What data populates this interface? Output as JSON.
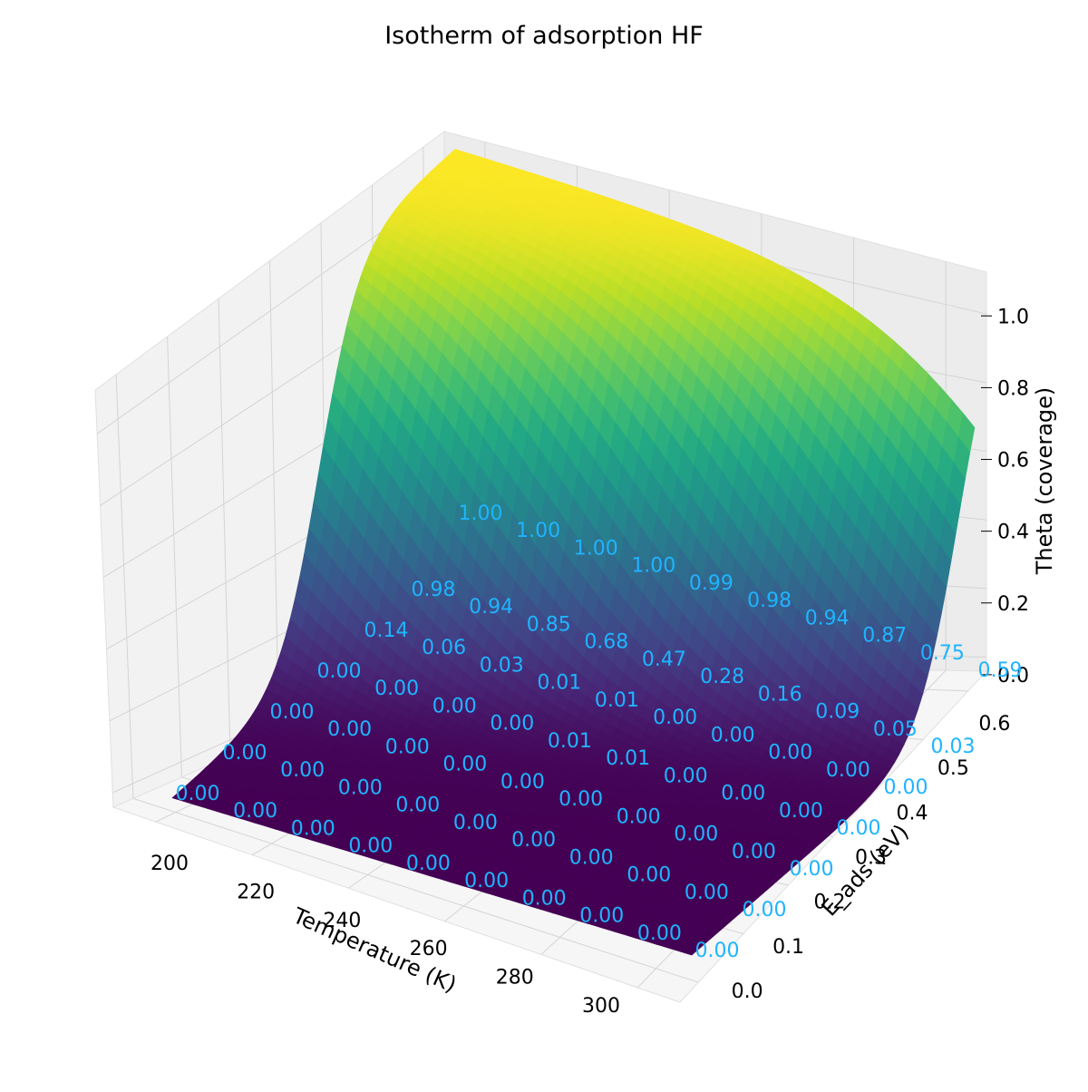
{
  "chart_data": {
    "type": "surface3d",
    "title": "Isotherm of adsorption HF",
    "xlabel": "Temperature (K)",
    "ylabel": "E_ads (eV)",
    "zlabel": "Theta (coverage)",
    "xlim": [
      200,
      300
    ],
    "ylim": [
      0.0,
      0.6
    ],
    "zlim": [
      0.0,
      1.0
    ],
    "x_ticks": [
      "200",
      "220",
      "240",
      "260",
      "280",
      "300"
    ],
    "y_ticks": [
      "0.0",
      "0.1",
      "0.2",
      "0.3",
      "0.4",
      "0.5",
      "0.6"
    ],
    "z_ticks": [
      "0.0",
      "0.2",
      "0.4",
      "0.6",
      "0.8",
      "1.0"
    ],
    "colormap": "viridis",
    "grid": true,
    "annotation_color": "#1fb4ff",
    "annotation_temperatures": [
      200,
      211.1,
      222.2,
      233.3,
      244.4,
      255.6,
      266.7,
      277.8,
      288.9,
      300
    ],
    "annotation_energies": [
      0.0,
      0.1,
      0.2,
      0.3,
      0.4,
      0.5
    ],
    "annotation_rows": [
      [
        "0.00",
        "0.00",
        "0.00",
        "0.00",
        "0.00",
        "0.00",
        "0.00",
        "0.00",
        "0.00",
        "0.00"
      ],
      [
        "0.00",
        "0.00",
        "0.00",
        "0.00",
        "0.00",
        "0.00",
        "0.00",
        "0.00",
        "0.00",
        "0.00"
      ],
      [
        "0.00",
        "0.00",
        "0.00",
        "0.00",
        "0.00",
        "0.00",
        "0.00",
        "0.00",
        "0.00",
        "0.00"
      ],
      [
        "0.00",
        "0.00",
        "0.00",
        "0.00",
        "0.01",
        "0.01",
        "0.00",
        "0.00",
        "0.00",
        "0.00"
      ],
      [
        "0.14",
        "0.06",
        "0.03",
        "0.01",
        "0.01",
        "0.00",
        "0.00",
        "0.00",
        "0.00",
        "0.00"
      ],
      [
        "0.98",
        "0.94",
        "0.85",
        "0.68",
        "0.47",
        "0.28",
        "0.16",
        "0.09",
        "0.05",
        "0.03"
      ]
    ],
    "annotation_rows_upper": [
      [
        "1.00",
        "1.00",
        "1.00",
        "1.00",
        "0.99",
        "0.98",
        "0.94",
        "0.87",
        "0.75",
        "0.59"
      ]
    ]
  }
}
